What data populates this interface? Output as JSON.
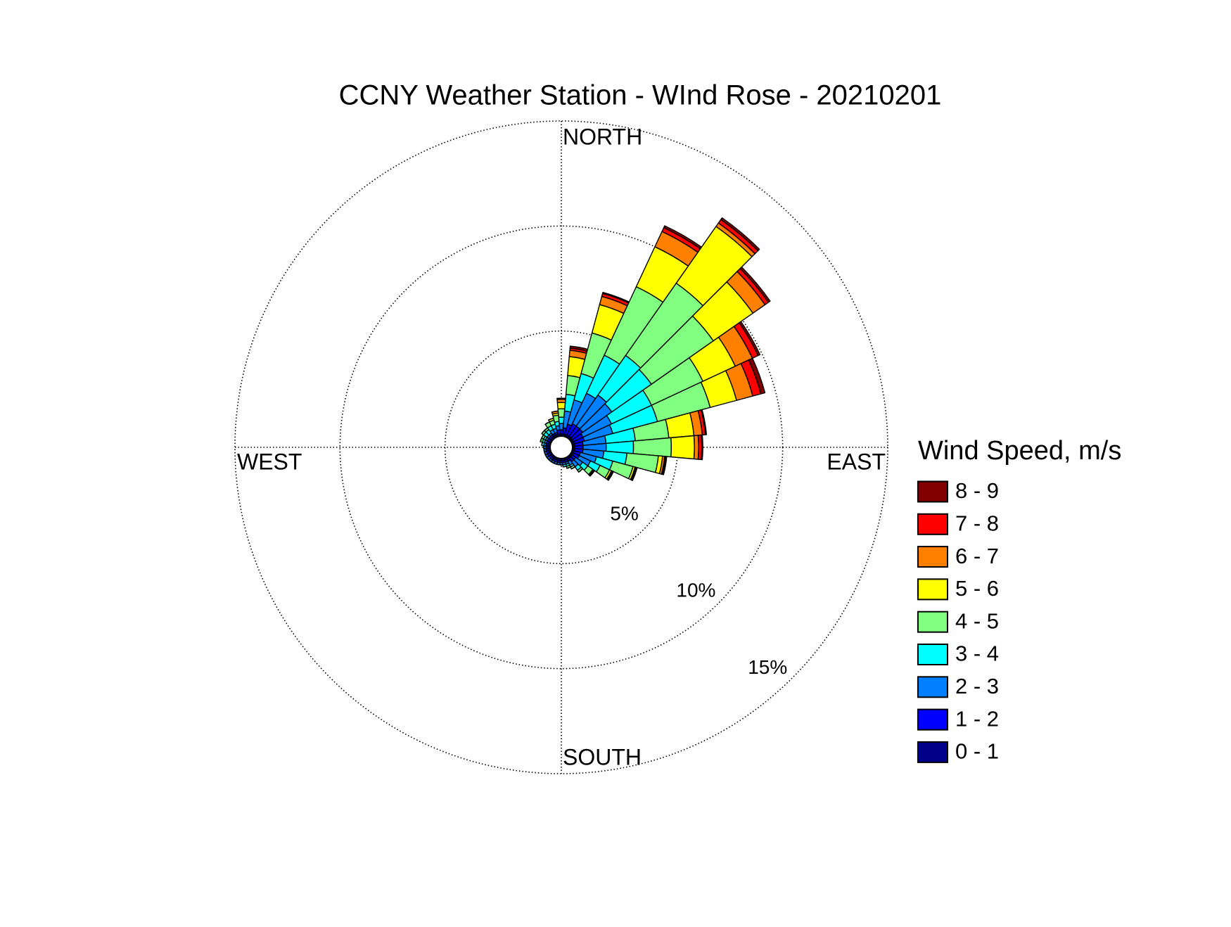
{
  "chart_data": {
    "type": "windrose",
    "title": "CCNY Weather Station - WInd Rose - 20210201",
    "direction_labels": {
      "north": "NORTH",
      "east": "EAST",
      "south": "SOUTH",
      "west": "WEST"
    },
    "x": [
      10,
      20,
      30,
      40,
      50,
      60,
      70,
      80,
      90,
      100,
      110,
      120,
      130,
      140,
      150,
      160,
      170,
      180,
      190,
      200,
      210,
      220,
      230,
      240,
      250,
      260,
      270,
      280,
      290,
      300,
      310,
      320,
      330,
      340,
      350,
      360
    ],
    "ylim": [
      0,
      15
    ],
    "yticks": [
      {
        "value": 5,
        "label": "5%"
      },
      {
        "value": 10,
        "label": "10%"
      },
      {
        "value": 15,
        "label": "15%"
      }
    ],
    "grid": true,
    "legend_title": "Wind Speed, m/s",
    "series": [
      {
        "name": "0 - 1",
        "color": "#00008b",
        "values": [
          0.1,
          0.1,
          0.1,
          0.1,
          0.1,
          0.1,
          0.1,
          0.1,
          0.1,
          0.1,
          0.1,
          0.1,
          0.1,
          0.1,
          0.1,
          0.1,
          0.1,
          0.1,
          0.1,
          0.1,
          0.1,
          0.1,
          0.1,
          0.1,
          0.1,
          0.1,
          0.1,
          0.1,
          0.1,
          0.1,
          0.1,
          0.1,
          0.1,
          0.1,
          0.1,
          0.1
        ]
      },
      {
        "name": "1 - 2",
        "color": "#0000ff",
        "values": [
          0.3,
          0.5,
          0.6,
          0.6,
          0.6,
          0.5,
          0.5,
          0.4,
          0.4,
          0.4,
          0.3,
          0.3,
          0.2,
          0.2,
          0.1,
          0.1,
          0.1,
          0.1,
          0.1,
          0.1,
          0.1,
          0.1,
          0.1,
          0.1,
          0.1,
          0.1,
          0.1,
          0.1,
          0.1,
          0.1,
          0.1,
          0.1,
          0.1,
          0.1,
          0.2,
          0.2
        ]
      },
      {
        "name": "2 - 3",
        "color": "#0080ff",
        "values": [
          0.8,
          1.2,
          1.6,
          1.8,
          1.7,
          1.5,
          1.4,
          1.1,
          1.1,
          1.0,
          0.8,
          0.6,
          0.4,
          0.3,
          0.2,
          0.1,
          0.1,
          0.1,
          0.1,
          0.1,
          0.1,
          0.1,
          0.1,
          0.1,
          0.1,
          0.1,
          0.1,
          0.1,
          0.1,
          0.1,
          0.1,
          0.1,
          0.2,
          0.2,
          0.2,
          0.3
        ]
      },
      {
        "name": "3 - 4",
        "color": "#00ffff",
        "values": [
          0.8,
          1.3,
          2.0,
          2.3,
          2.3,
          2.1,
          2.2,
          1.4,
          1.3,
          1.1,
          0.8,
          0.5,
          0.3,
          0.2,
          0.1,
          0.1,
          0.1,
          0,
          0,
          0,
          0,
          0,
          0,
          0,
          0,
          0,
          0,
          0.1,
          0.1,
          0.1,
          0.2,
          0.2,
          0.2,
          0.2,
          0.2,
          0.3
        ]
      },
      {
        "name": "4 - 5",
        "color": "#80ff80",
        "values": [
          0.9,
          2.0,
          3.6,
          4.2,
          3.6,
          2.7,
          2.6,
          1.6,
          1.8,
          1.5,
          1.0,
          0.5,
          0.3,
          0.1,
          0.1,
          0.1,
          0,
          0,
          0,
          0,
          0,
          0,
          0,
          0,
          0,
          0,
          0,
          0,
          0.1,
          0.1,
          0.1,
          0.1,
          0.2,
          0.2,
          0.3,
          0.4
        ]
      },
      {
        "name": "5 - 6",
        "color": "#ffff00",
        "values": [
          0.9,
          1.4,
          2.1,
          3.3,
          2.3,
          1.7,
          1.3,
          1.2,
          1.1,
          0.2,
          0.1,
          0.1,
          0.05,
          0,
          0,
          0,
          0,
          0,
          0,
          0,
          0,
          0,
          0,
          0,
          0,
          0,
          0,
          0,
          0,
          0,
          0,
          0,
          0,
          0.1,
          0.1,
          0.3
        ]
      },
      {
        "name": "6 - 7",
        "color": "#ff8000",
        "values": [
          0.3,
          0.4,
          0.8,
          0.2,
          0.7,
          0.9,
          0.8,
          0.4,
          0.2,
          0.1,
          0.05,
          0.05,
          0.05,
          0,
          0,
          0,
          0,
          0,
          0,
          0,
          0,
          0,
          0,
          0,
          0,
          0,
          0,
          0,
          0,
          0,
          0,
          0,
          0,
          0,
          0.1,
          0.15
        ]
      },
      {
        "name": "7 - 8",
        "color": "#ff0000",
        "values": [
          0.1,
          0.15,
          0.2,
          0.2,
          0.2,
          0.3,
          0.4,
          0.15,
          0.15,
          0.05,
          0.05,
          0.05,
          0,
          0,
          0,
          0,
          0,
          0,
          0,
          0,
          0,
          0,
          0,
          0,
          0,
          0,
          0,
          0,
          0,
          0,
          0,
          0,
          0,
          0,
          0,
          0.05
        ]
      },
      {
        "name": "8 - 9",
        "color": "#800000",
        "values": [
          0.1,
          0.05,
          0.1,
          0.1,
          0.1,
          0.1,
          0.2,
          0.05,
          0.05,
          0.05,
          0,
          0,
          0,
          0,
          0,
          0,
          0,
          0,
          0,
          0,
          0,
          0,
          0,
          0,
          0,
          0,
          0,
          0,
          0,
          0,
          0,
          0,
          0,
          0,
          0,
          0
        ]
      }
    ]
  }
}
